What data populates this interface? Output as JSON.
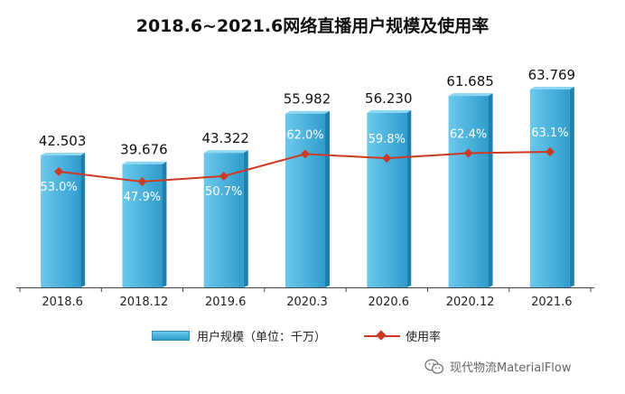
{
  "colors": {
    "bar_top": "#6cc9ec",
    "bar_bottom": "#2f9ccd",
    "bar_side": "#1f7fae",
    "line": "#cc3a22",
    "axis": "#444444"
  },
  "watermark": {
    "text": "现代物流MaterialFlow",
    "icon": "wechat-icon"
  },
  "chart_data": {
    "type": "bar",
    "title": "2018.6~2021.6网络直播用户规模及使用率",
    "categories": [
      "2018.6",
      "2018.12",
      "2019.6",
      "2020.3",
      "2020.6",
      "2020.12",
      "2021.6"
    ],
    "series": [
      {
        "name": "用户规模（单位：千万）",
        "type": "bar",
        "values": [
          42.503,
          39.676,
          43.322,
          55.982,
          56.23,
          61.685,
          63.769
        ],
        "labels": [
          "42.503",
          "39.676",
          "43.322",
          "55.982",
          "56.230",
          "61.685",
          "63.769"
        ]
      },
      {
        "name": "使用率",
        "type": "line",
        "values": [
          53.0,
          47.9,
          50.7,
          62.0,
          59.8,
          62.4,
          63.1
        ],
        "labels": [
          "53.0%",
          "47.9%",
          "50.7%",
          "62.0%",
          "59.8%",
          "62.4%",
          "63.1%"
        ]
      }
    ],
    "xlabel": "",
    "ylabel": "",
    "y_axis_shown": false,
    "grid": false,
    "legend_position": "bottom"
  }
}
